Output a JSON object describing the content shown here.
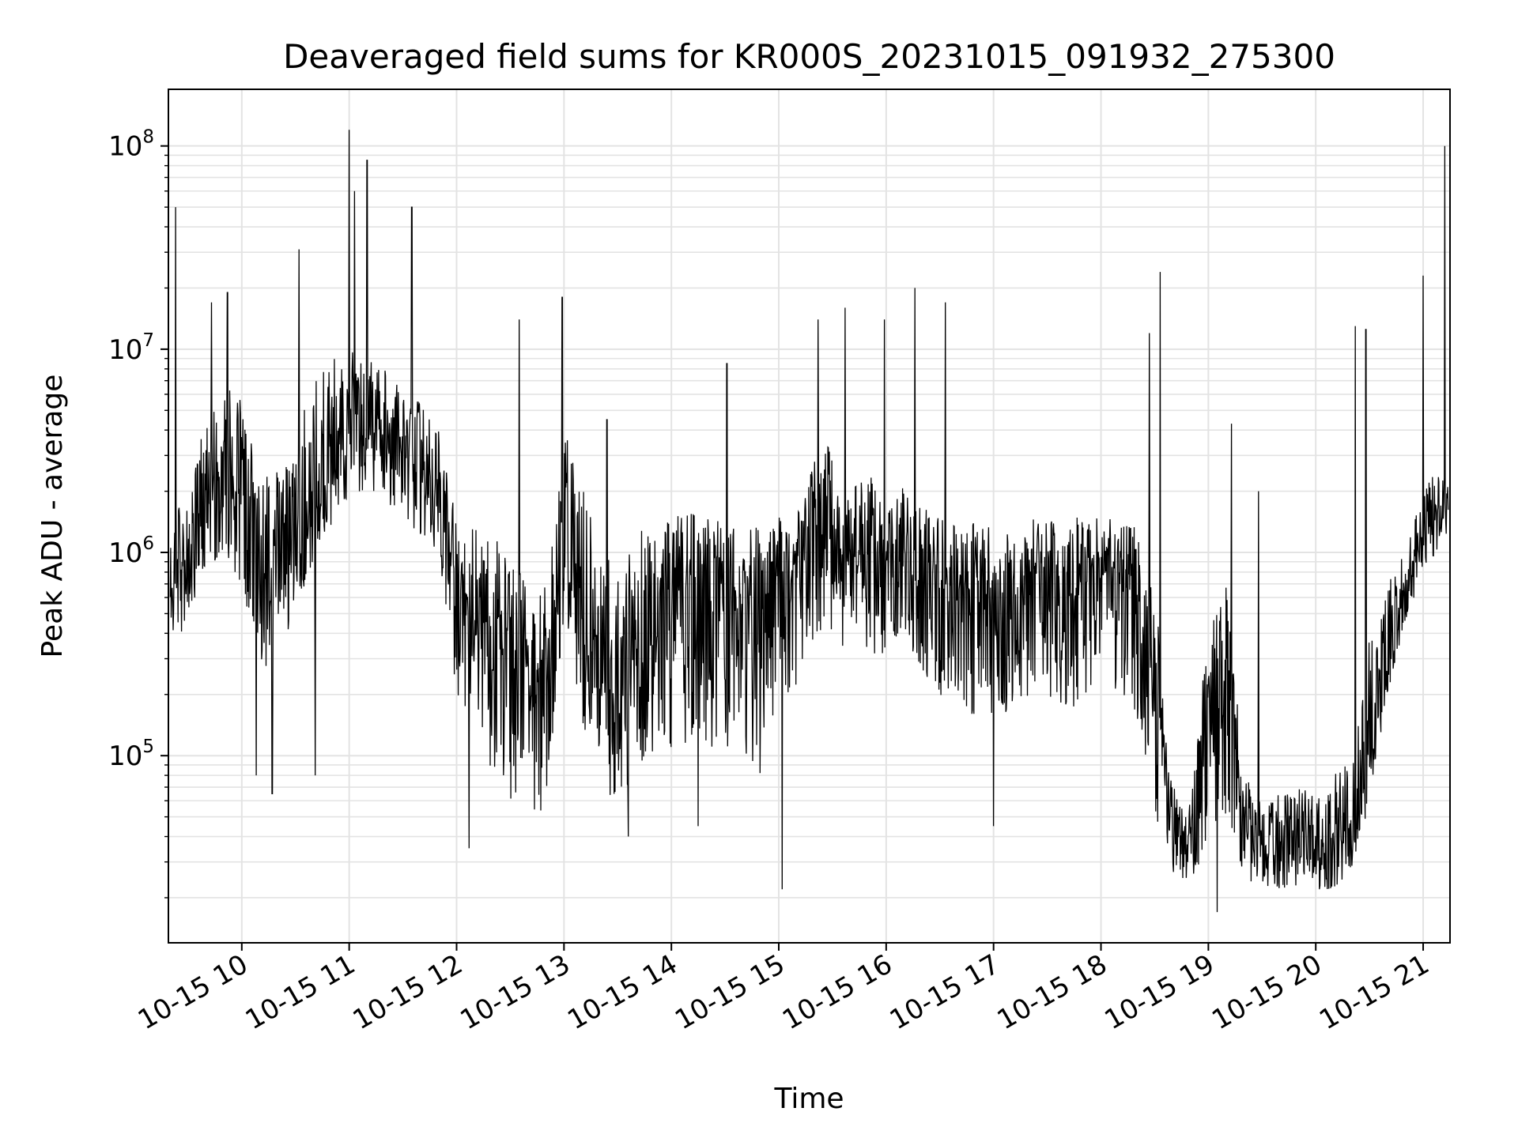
{
  "chart_data": {
    "type": "line",
    "title": "Deaveraged field sums for KR000S_20231015_091932_275300",
    "xlabel": "Time",
    "ylabel": "Peak ADU - average",
    "yscale": "log",
    "grid": true,
    "x_range": [
      "2023-10-15 09:19",
      "2023-10-15 21:15"
    ],
    "ylim": [
      12000,
      190000000
    ],
    "x_tick_labels": [
      "10-15 10",
      "10-15 11",
      "10-15 12",
      "10-15 13",
      "10-15 14",
      "10-15 15",
      "10-15 16",
      "10-15 17",
      "10-15 18",
      "10-15 19",
      "10-15 20",
      "10-15 21"
    ],
    "y_ticks": [
      {
        "base": "10",
        "exp": "5",
        "value": 100000
      },
      {
        "base": "10",
        "exp": "6",
        "value": 1000000
      },
      {
        "base": "10",
        "exp": "7",
        "value": 10000000
      },
      {
        "base": "10",
        "exp": "8",
        "value": 100000000
      }
    ],
    "line_color": "#000000",
    "series": [
      {
        "x": [
          "09:20",
          "09:30",
          "09:40",
          "09:50",
          "10:00",
          "10:10",
          "10:20",
          "10:30",
          "10:40",
          "10:50",
          "11:00",
          "11:10",
          "11:20",
          "11:30",
          "11:40",
          "11:50",
          "12:00",
          "12:10",
          "12:20",
          "12:30",
          "12:40",
          "12:50",
          "13:00",
          "13:10",
          "13:20",
          "13:30",
          "13:40",
          "13:50",
          "14:00",
          "14:10",
          "14:20",
          "14:30",
          "14:40",
          "14:50",
          "15:00",
          "15:10",
          "15:20",
          "15:30",
          "15:40",
          "15:50",
          "16:00",
          "16:10",
          "16:20",
          "16:30",
          "16:40",
          "16:50",
          "17:00",
          "17:10",
          "17:20",
          "17:30",
          "17:40",
          "17:50",
          "18:00",
          "18:10",
          "18:20",
          "18:30",
          "18:40",
          "18:50",
          "19:00",
          "19:10",
          "19:20",
          "19:30",
          "19:40",
          "19:50",
          "20:00",
          "20:10",
          "20:20",
          "20:30",
          "20:40",
          "20:50",
          "21:00",
          "21:10"
        ],
        "y": [
          700000,
          900000,
          1500000,
          2500000,
          2000000,
          1200000,
          1000000,
          1300000,
          2000000,
          2500000,
          4000000,
          4500000,
          4000000,
          3500000,
          2500000,
          2000000,
          700000,
          500000,
          400000,
          300000,
          250000,
          250000,
          1500000,
          500000,
          300000,
          250000,
          400000,
          500000,
          550000,
          600000,
          550000,
          550000,
          500000,
          500000,
          700000,
          800000,
          1000000,
          1200000,
          900000,
          1100000,
          900000,
          1200000,
          800000,
          700000,
          650000,
          650000,
          600000,
          550000,
          700000,
          750000,
          700000,
          750000,
          750000,
          700000,
          600000,
          200000,
          40000,
          35000,
          150000,
          200000,
          40000,
          35000,
          40000,
          40000,
          40000,
          40000,
          45000,
          100000,
          300000,
          600000,
          1200000,
          1800000
        ],
        "y_low": [
          350000,
          400000,
          800000,
          1000000,
          700000,
          250000,
          300000,
          500000,
          900000,
          1200000,
          2000000,
          2000000,
          1800000,
          1500000,
          1200000,
          1000000,
          200000,
          150000,
          80000,
          50000,
          50000,
          50000,
          500000,
          150000,
          70000,
          60000,
          80000,
          100000,
          100000,
          120000,
          100000,
          100000,
          100000,
          80000,
          200000,
          200000,
          400000,
          400000,
          300000,
          300000,
          300000,
          400000,
          250000,
          200000,
          150000,
          150000,
          150000,
          150000,
          200000,
          200000,
          150000,
          200000,
          200000,
          200000,
          150000,
          50000,
          25000,
          22000,
          40000,
          50000,
          25000,
          22000,
          22000,
          22000,
          22000,
          22000,
          25000,
          60000,
          200000,
          450000,
          800000,
          1100000
        ],
        "y_high": [
          1500000,
          2000000,
          4500000,
          7000000,
          5500000,
          2500000,
          2500000,
          4000000,
          7000000,
          9000000,
          11000000,
          9000000,
          8000000,
          7000000,
          5500000,
          4500000,
          1400000,
          1300000,
          1200000,
          1000000,
          700000,
          700000,
          4000000,
          2200000,
          1000000,
          900000,
          1200000,
          1500000,
          1500000,
          1700000,
          1500000,
          1400000,
          1400000,
          1300000,
          1600000,
          1500000,
          3000000,
          3500000,
          2000000,
          2500000,
          1700000,
          2200000,
          1700000,
          1500000,
          1400000,
          1400000,
          1400000,
          1300000,
          1500000,
          1500000,
          1500000,
          1500000,
          1600000,
          1500000,
          1400000,
          700000,
          70000,
          60000,
          450000,
          700000,
          80000,
          60000,
          70000,
          70000,
          70000,
          80000,
          100000,
          400000,
          700000,
          1000000,
          2000000,
          3000000
        ]
      }
    ],
    "spikes": [
      {
        "x": "09:23",
        "y": 50000000
      },
      {
        "x": "09:43",
        "y": 17000000
      },
      {
        "x": "09:52",
        "y": 19000000
      },
      {
        "x": "10:08",
        "y": 80000
      },
      {
        "x": "10:17",
        "y": 65000
      },
      {
        "x": "10:32",
        "y": 31000000
      },
      {
        "x": "10:41",
        "y": 80000
      },
      {
        "x": "11:00",
        "y": 120000000
      },
      {
        "x": "11:03",
        "y": 60000000
      },
      {
        "x": "11:10",
        "y": 85000000
      },
      {
        "x": "11:35",
        "y": 50000000
      },
      {
        "x": "12:07",
        "y": 35000
      },
      {
        "x": "12:35",
        "y": 14000000
      },
      {
        "x": "12:59",
        "y": 18000000
      },
      {
        "x": "13:24",
        "y": 4500000
      },
      {
        "x": "13:36",
        "y": 40000
      },
      {
        "x": "14:15",
        "y": 45000
      },
      {
        "x": "14:31",
        "y": 8500000
      },
      {
        "x": "15:02",
        "y": 22000
      },
      {
        "x": "15:22",
        "y": 14000000
      },
      {
        "x": "15:37",
        "y": 16000000
      },
      {
        "x": "15:59",
        "y": 14000000
      },
      {
        "x": "16:16",
        "y": 20000000
      },
      {
        "x": "16:33",
        "y": 17000000
      },
      {
        "x": "17:00",
        "y": 45000
      },
      {
        "x": "18:27",
        "y": 12000000
      },
      {
        "x": "18:33",
        "y": 24000000
      },
      {
        "x": "19:05",
        "y": 17000
      },
      {
        "x": "19:13",
        "y": 4300000
      },
      {
        "x": "19:28",
        "y": 2000000
      },
      {
        "x": "20:22",
        "y": 13000000
      },
      {
        "x": "20:28",
        "y": 12500000
      },
      {
        "x": "21:00",
        "y": 23000000
      },
      {
        "x": "21:12",
        "y": 100000000
      }
    ]
  }
}
